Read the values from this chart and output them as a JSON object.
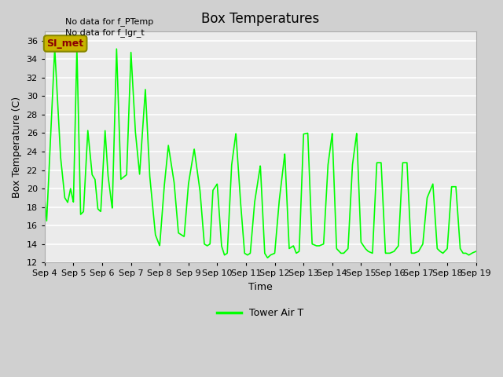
{
  "title": "Box Temperatures",
  "xlabel": "Time",
  "ylabel": "Box Temperature (C)",
  "no_data_text_1": "No data for f_PTemp",
  "no_data_text_2": "No data for f_lgr_t",
  "legend_label": "Tower Air T",
  "legend_color": "#00ff00",
  "line_color": "#00ff00",
  "fig_bg_color": "#d0d0d0",
  "plot_bg_color": "#ebebeb",
  "grid_color": "#ffffff",
  "ylim": [
    12,
    37
  ],
  "xlim": [
    0,
    15
  ],
  "yticks": [
    12,
    14,
    16,
    18,
    20,
    22,
    24,
    26,
    28,
    30,
    32,
    34,
    36
  ],
  "xtick_labels": [
    "Sep 4",
    "Sep 5",
    "Sep 6",
    "Sep 7",
    "Sep 8",
    "Sep 9",
    "Sep 10",
    "Sep 11",
    "Sep 12",
    "Sep 13",
    "Sep 14",
    "Sep 15",
    "Sep 16",
    "Sep 17",
    "Sep 18",
    "Sep 19"
  ],
  "SI_met_text": "SI_met",
  "SI_met_bg": "#c8b400",
  "SI_met_fg": "#8b0000",
  "peaks": [
    {
      "t": 0.0,
      "v": 19.0
    },
    {
      "t": 0.07,
      "v": 16.5
    },
    {
      "t": 0.35,
      "v": 35.2
    },
    {
      "t": 0.55,
      "v": 23.5
    },
    {
      "t": 0.7,
      "v": 19.0
    },
    {
      "t": 0.8,
      "v": 18.5
    },
    {
      "t": 0.9,
      "v": 20.0
    },
    {
      "t": 1.0,
      "v": 18.5
    },
    {
      "t": 1.12,
      "v": 35.3
    },
    {
      "t": 1.25,
      "v": 17.2
    },
    {
      "t": 1.35,
      "v": 17.5
    },
    {
      "t": 1.5,
      "v": 26.3
    },
    {
      "t": 1.65,
      "v": 21.5
    },
    {
      "t": 1.75,
      "v": 21.0
    },
    {
      "t": 1.85,
      "v": 17.8
    },
    {
      "t": 1.95,
      "v": 17.5
    },
    {
      "t": 2.1,
      "v": 26.3
    },
    {
      "t": 2.2,
      "v": 21.5
    },
    {
      "t": 2.35,
      "v": 17.8
    },
    {
      "t": 2.5,
      "v": 35.2
    },
    {
      "t": 2.65,
      "v": 21.0
    },
    {
      "t": 2.85,
      "v": 21.5
    },
    {
      "t": 3.0,
      "v": 34.8
    },
    {
      "t": 3.15,
      "v": 26.3
    },
    {
      "t": 3.3,
      "v": 21.5
    },
    {
      "t": 3.5,
      "v": 30.8
    },
    {
      "t": 3.65,
      "v": 21.5
    },
    {
      "t": 3.85,
      "v": 15.0
    },
    {
      "t": 4.0,
      "v": 13.8
    },
    {
      "t": 4.15,
      "v": 20.0
    },
    {
      "t": 4.3,
      "v": 24.7
    },
    {
      "t": 4.5,
      "v": 20.7
    },
    {
      "t": 4.65,
      "v": 15.2
    },
    {
      "t": 4.75,
      "v": 15.0
    },
    {
      "t": 4.85,
      "v": 14.8
    },
    {
      "t": 5.0,
      "v": 20.5
    },
    {
      "t": 5.2,
      "v": 24.3
    },
    {
      "t": 5.4,
      "v": 19.8
    },
    {
      "t": 5.55,
      "v": 14.0
    },
    {
      "t": 5.65,
      "v": 13.8
    },
    {
      "t": 5.75,
      "v": 14.0
    },
    {
      "t": 5.85,
      "v": 19.8
    },
    {
      "t": 6.0,
      "v": 20.5
    },
    {
      "t": 6.15,
      "v": 13.8
    },
    {
      "t": 6.25,
      "v": 12.8
    },
    {
      "t": 6.35,
      "v": 13.0
    },
    {
      "t": 6.5,
      "v": 22.5
    },
    {
      "t": 6.65,
      "v": 26.0
    },
    {
      "t": 6.8,
      "v": 19.0
    },
    {
      "t": 6.95,
      "v": 13.0
    },
    {
      "t": 7.05,
      "v": 12.8
    },
    {
      "t": 7.15,
      "v": 13.0
    },
    {
      "t": 7.3,
      "v": 18.5
    },
    {
      "t": 7.5,
      "v": 22.5
    },
    {
      "t": 7.65,
      "v": 13.0
    },
    {
      "t": 7.75,
      "v": 12.5
    },
    {
      "t": 7.85,
      "v": 12.8
    },
    {
      "t": 8.0,
      "v": 13.0
    },
    {
      "t": 8.15,
      "v": 18.5
    },
    {
      "t": 8.35,
      "v": 23.8
    },
    {
      "t": 8.5,
      "v": 13.5
    },
    {
      "t": 8.65,
      "v": 13.8
    },
    {
      "t": 8.75,
      "v": 13.0
    },
    {
      "t": 8.85,
      "v": 13.2
    },
    {
      "t": 9.0,
      "v": 25.9
    },
    {
      "t": 9.15,
      "v": 26.0
    },
    {
      "t": 9.3,
      "v": 14.0
    },
    {
      "t": 9.45,
      "v": 13.8
    },
    {
      "t": 9.55,
      "v": 13.8
    },
    {
      "t": 9.7,
      "v": 14.0
    },
    {
      "t": 9.85,
      "v": 22.5
    },
    {
      "t": 10.0,
      "v": 26.0
    },
    {
      "t": 10.15,
      "v": 13.5
    },
    {
      "t": 10.3,
      "v": 13.0
    },
    {
      "t": 10.4,
      "v": 13.0
    },
    {
      "t": 10.55,
      "v": 13.5
    },
    {
      "t": 10.7,
      "v": 22.5
    },
    {
      "t": 10.85,
      "v": 26.0
    },
    {
      "t": 11.0,
      "v": 14.2
    },
    {
      "t": 11.15,
      "v": 13.5
    },
    {
      "t": 11.25,
      "v": 13.2
    },
    {
      "t": 11.4,
      "v": 13.0
    },
    {
      "t": 11.55,
      "v": 22.8
    },
    {
      "t": 11.7,
      "v": 22.8
    },
    {
      "t": 11.85,
      "v": 13.0
    },
    {
      "t": 12.0,
      "v": 13.0
    },
    {
      "t": 12.15,
      "v": 13.2
    },
    {
      "t": 12.3,
      "v": 13.8
    },
    {
      "t": 12.45,
      "v": 22.8
    },
    {
      "t": 12.6,
      "v": 22.8
    },
    {
      "t": 12.75,
      "v": 13.0
    },
    {
      "t": 12.85,
      "v": 13.0
    },
    {
      "t": 13.0,
      "v": 13.2
    },
    {
      "t": 13.15,
      "v": 14.0
    },
    {
      "t": 13.3,
      "v": 19.0
    },
    {
      "t": 13.5,
      "v": 20.5
    },
    {
      "t": 13.65,
      "v": 13.5
    },
    {
      "t": 13.75,
      "v": 13.2
    },
    {
      "t": 13.85,
      "v": 13.0
    },
    {
      "t": 14.0,
      "v": 13.5
    },
    {
      "t": 14.15,
      "v": 20.2
    },
    {
      "t": 14.3,
      "v": 20.2
    },
    {
      "t": 14.45,
      "v": 13.5
    },
    {
      "t": 14.55,
      "v": 13.0
    },
    {
      "t": 14.65,
      "v": 13.0
    },
    {
      "t": 14.75,
      "v": 12.8
    },
    {
      "t": 14.85,
      "v": 13.0
    },
    {
      "t": 15.0,
      "v": 13.2
    }
  ],
  "title_fontsize": 12,
  "axis_fontsize": 9,
  "tick_fontsize": 8
}
